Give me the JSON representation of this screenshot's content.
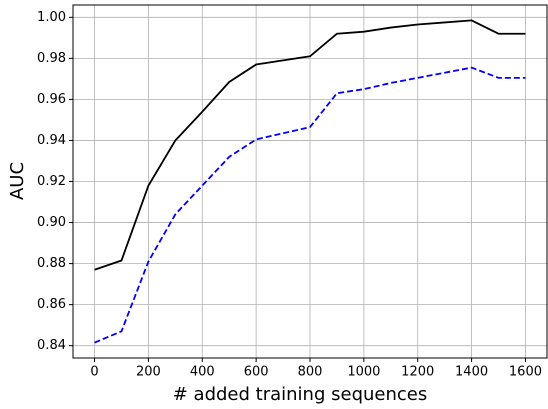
{
  "chart_data": {
    "type": "line",
    "xlabel": "# added training sequences",
    "ylabel": "AUC",
    "x": [
      0,
      100,
      200,
      300,
      400,
      500,
      600,
      700,
      800,
      900,
      1000,
      1100,
      1200,
      1300,
      1400,
      1500,
      1600
    ],
    "series": [
      {
        "color": "#000000",
        "dash": false,
        "values": [
          0.877,
          0.8815,
          0.918,
          0.94,
          0.954,
          0.9685,
          0.977,
          0.979,
          0.981,
          0.992,
          0.993,
          0.995,
          0.9965,
          0.9975,
          0.9985,
          0.992,
          0.992
        ]
      },
      {
        "color": "#0000ff",
        "dash": true,
        "values": [
          0.8415,
          0.847,
          0.881,
          0.904,
          0.918,
          0.932,
          0.9405,
          0.9435,
          0.9465,
          0.963,
          0.965,
          0.968,
          0.9705,
          0.973,
          0.9755,
          0.9705,
          0.9705
        ]
      }
    ],
    "xlim": [
      -80,
      1680
    ],
    "ylim": [
      0.834,
      1.006
    ],
    "xticks": [
      0,
      200,
      400,
      600,
      800,
      1000,
      1200,
      1400,
      1600
    ],
    "yticks": [
      0.84,
      0.86,
      0.88,
      {
        "value": 0.9,
        "label": "0.90"
      },
      0.92,
      0.94,
      0.96,
      0.98,
      {
        "value": 1,
        "label": "1.00"
      }
    ],
    "grid": true
  }
}
